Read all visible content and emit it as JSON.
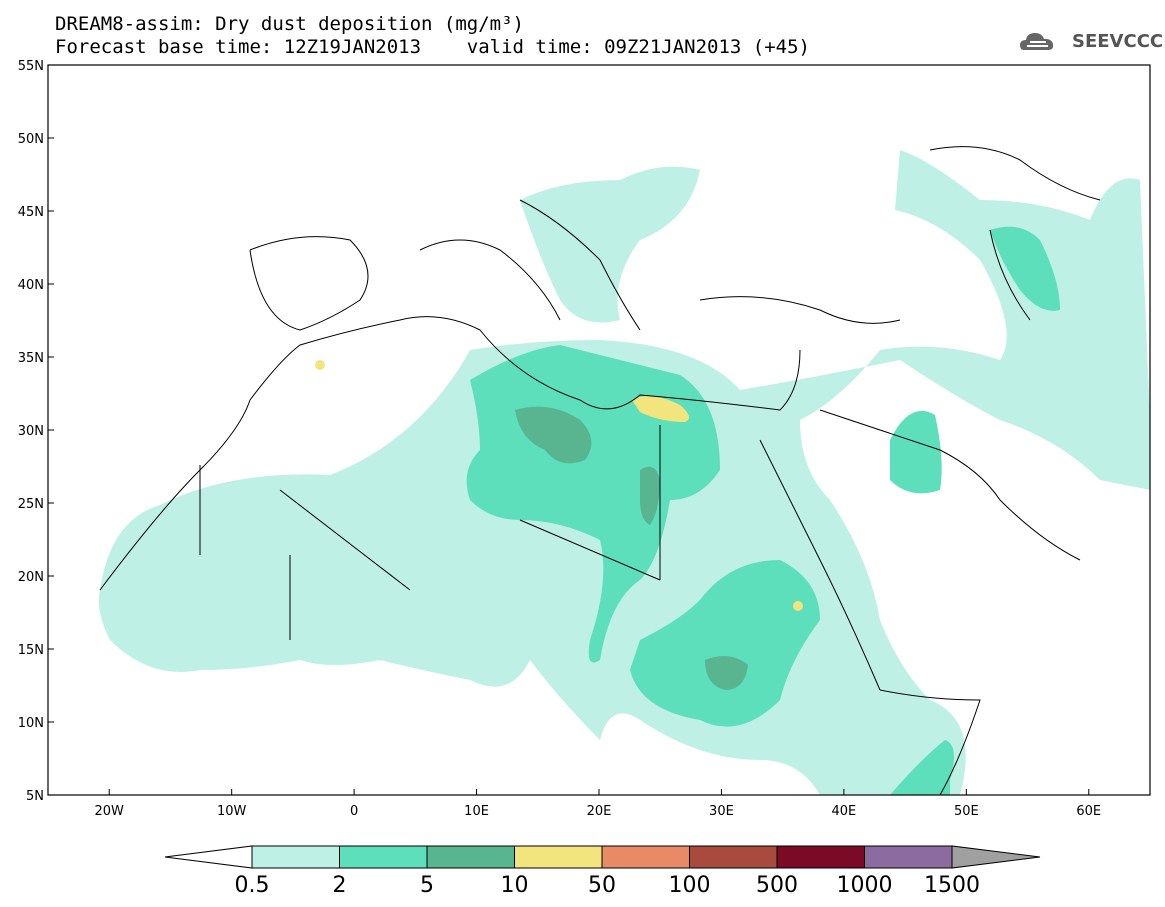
{
  "title": {
    "line1": "DREAM8-assim: Dry dust deposition (mg/m³)",
    "line2": "Forecast base time: 12Z19JAN2013    valid time: 09Z21JAN2013 (+45)"
  },
  "logo": {
    "text": "SEEVCCC",
    "icon": "cloud-icon"
  },
  "map": {
    "lat_labels": [
      "55N",
      "50N",
      "45N",
      "40N",
      "35N",
      "30N",
      "25N",
      "20N",
      "15N",
      "10N",
      "5N"
    ],
    "lon_labels": [
      "20W",
      "10W",
      "0",
      "10E",
      "20E",
      "30E",
      "40E",
      "50E",
      "60E"
    ],
    "lat_range": [
      5,
      55
    ],
    "lon_range": [
      -25,
      65
    ]
  },
  "colorbar": {
    "labels": [
      "0.5",
      "2",
      "5",
      "10",
      "50",
      "100",
      "500",
      "1000",
      "1500"
    ],
    "colors": [
      "#bff0e6",
      "#5ddfbb",
      "#58b590",
      "#f2e57e",
      "#e98a66",
      "#a84a3e",
      "#7a0a26",
      "#8c6ba0"
    ],
    "under_color": "#ffffff",
    "over_color": "#a0a0a0"
  }
}
